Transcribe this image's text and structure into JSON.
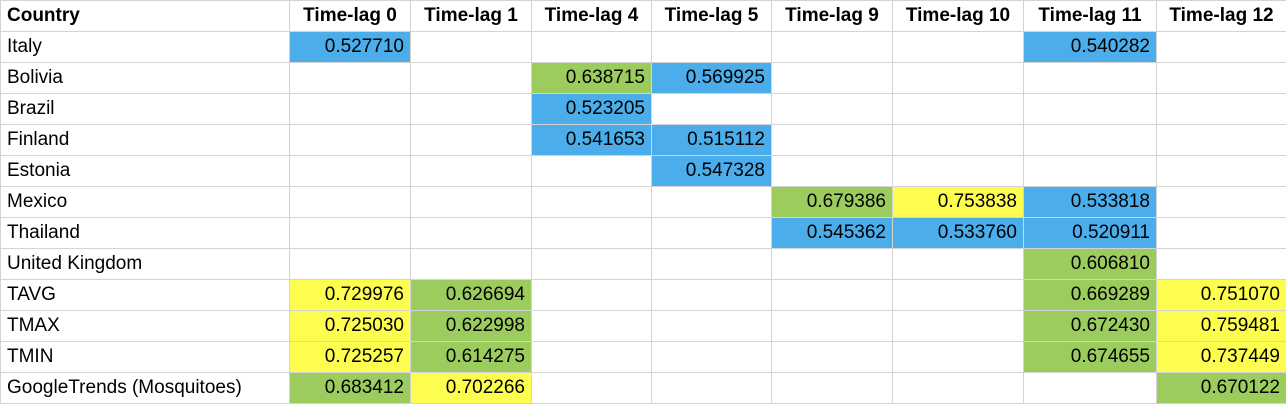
{
  "colors": {
    "blue": "#4badea",
    "green": "#9ccc5d",
    "yellow": "#fdfd50",
    "gridline": "#d4d4d4"
  },
  "table": {
    "headers": [
      "Country",
      "Time-lag 0",
      "Time-lag 1",
      "Time-lag 4",
      "Time-lag 5",
      "Time-lag 9",
      "Time-lag 10",
      "Time-lag 11",
      "Time-lag 12"
    ],
    "rows": [
      {
        "label": "Italy",
        "cells": [
          {
            "v": "0.527710",
            "c": "blue"
          },
          {
            "v": "",
            "c": ""
          },
          {
            "v": "",
            "c": ""
          },
          {
            "v": "",
            "c": ""
          },
          {
            "v": "",
            "c": ""
          },
          {
            "v": "",
            "c": ""
          },
          {
            "v": "0.540282",
            "c": "blue"
          },
          {
            "v": "",
            "c": ""
          }
        ]
      },
      {
        "label": "Bolivia",
        "cells": [
          {
            "v": "",
            "c": ""
          },
          {
            "v": "",
            "c": ""
          },
          {
            "v": "0.638715",
            "c": "green"
          },
          {
            "v": "0.569925",
            "c": "blue"
          },
          {
            "v": "",
            "c": ""
          },
          {
            "v": "",
            "c": ""
          },
          {
            "v": "",
            "c": ""
          },
          {
            "v": "",
            "c": ""
          }
        ]
      },
      {
        "label": "Brazil",
        "cells": [
          {
            "v": "",
            "c": ""
          },
          {
            "v": "",
            "c": ""
          },
          {
            "v": "0.523205",
            "c": "blue"
          },
          {
            "v": "",
            "c": ""
          },
          {
            "v": "",
            "c": ""
          },
          {
            "v": "",
            "c": ""
          },
          {
            "v": "",
            "c": ""
          },
          {
            "v": "",
            "c": ""
          }
        ]
      },
      {
        "label": "Finland",
        "cells": [
          {
            "v": "",
            "c": ""
          },
          {
            "v": "",
            "c": ""
          },
          {
            "v": "0.541653",
            "c": "blue"
          },
          {
            "v": "0.515112",
            "c": "blue"
          },
          {
            "v": "",
            "c": ""
          },
          {
            "v": "",
            "c": ""
          },
          {
            "v": "",
            "c": ""
          },
          {
            "v": "",
            "c": ""
          }
        ]
      },
      {
        "label": "Estonia",
        "cells": [
          {
            "v": "",
            "c": ""
          },
          {
            "v": "",
            "c": ""
          },
          {
            "v": "",
            "c": ""
          },
          {
            "v": "0.547328",
            "c": "blue"
          },
          {
            "v": "",
            "c": ""
          },
          {
            "v": "",
            "c": ""
          },
          {
            "v": "",
            "c": ""
          },
          {
            "v": "",
            "c": ""
          }
        ]
      },
      {
        "label": "Mexico",
        "cells": [
          {
            "v": "",
            "c": ""
          },
          {
            "v": "",
            "c": ""
          },
          {
            "v": "",
            "c": ""
          },
          {
            "v": "",
            "c": ""
          },
          {
            "v": "0.679386",
            "c": "green"
          },
          {
            "v": "0.753838",
            "c": "yellow"
          },
          {
            "v": "0.533818",
            "c": "blue"
          },
          {
            "v": "",
            "c": ""
          }
        ]
      },
      {
        "label": "Thailand",
        "cells": [
          {
            "v": "",
            "c": ""
          },
          {
            "v": "",
            "c": ""
          },
          {
            "v": "",
            "c": ""
          },
          {
            "v": "",
            "c": ""
          },
          {
            "v": "0.545362",
            "c": "blue"
          },
          {
            "v": "0.533760",
            "c": "blue"
          },
          {
            "v": "0.520911",
            "c": "blue"
          },
          {
            "v": "",
            "c": ""
          }
        ]
      },
      {
        "label": "United Kingdom",
        "cells": [
          {
            "v": "",
            "c": ""
          },
          {
            "v": "",
            "c": ""
          },
          {
            "v": "",
            "c": ""
          },
          {
            "v": "",
            "c": ""
          },
          {
            "v": "",
            "c": ""
          },
          {
            "v": "",
            "c": ""
          },
          {
            "v": "0.606810",
            "c": "green"
          },
          {
            "v": "",
            "c": ""
          }
        ]
      },
      {
        "label": "TAVG",
        "cells": [
          {
            "v": "0.729976",
            "c": "yellow"
          },
          {
            "v": "0.626694",
            "c": "green"
          },
          {
            "v": "",
            "c": ""
          },
          {
            "v": "",
            "c": ""
          },
          {
            "v": "",
            "c": ""
          },
          {
            "v": "",
            "c": ""
          },
          {
            "v": "0.669289",
            "c": "green"
          },
          {
            "v": "0.751070",
            "c": "yellow"
          }
        ]
      },
      {
        "label": "TMAX",
        "cells": [
          {
            "v": "0.725030",
            "c": "yellow"
          },
          {
            "v": "0.622998",
            "c": "green"
          },
          {
            "v": "",
            "c": ""
          },
          {
            "v": "",
            "c": ""
          },
          {
            "v": "",
            "c": ""
          },
          {
            "v": "",
            "c": ""
          },
          {
            "v": "0.672430",
            "c": "green"
          },
          {
            "v": "0.759481",
            "c": "yellow"
          }
        ]
      },
      {
        "label": "TMIN",
        "cells": [
          {
            "v": "0.725257",
            "c": "yellow"
          },
          {
            "v": "0.614275",
            "c": "green"
          },
          {
            "v": "",
            "c": ""
          },
          {
            "v": "",
            "c": ""
          },
          {
            "v": "",
            "c": ""
          },
          {
            "v": "",
            "c": ""
          },
          {
            "v": "0.674655",
            "c": "green"
          },
          {
            "v": "0.737449",
            "c": "yellow"
          }
        ]
      },
      {
        "label": "GoogleTrends (Mosquitoes)",
        "cells": [
          {
            "v": "0.683412",
            "c": "green"
          },
          {
            "v": "0.702266",
            "c": "yellow"
          },
          {
            "v": "",
            "c": ""
          },
          {
            "v": "",
            "c": ""
          },
          {
            "v": "",
            "c": ""
          },
          {
            "v": "",
            "c": ""
          },
          {
            "v": "",
            "c": ""
          },
          {
            "v": "0.670122",
            "c": "green"
          }
        ]
      }
    ]
  }
}
